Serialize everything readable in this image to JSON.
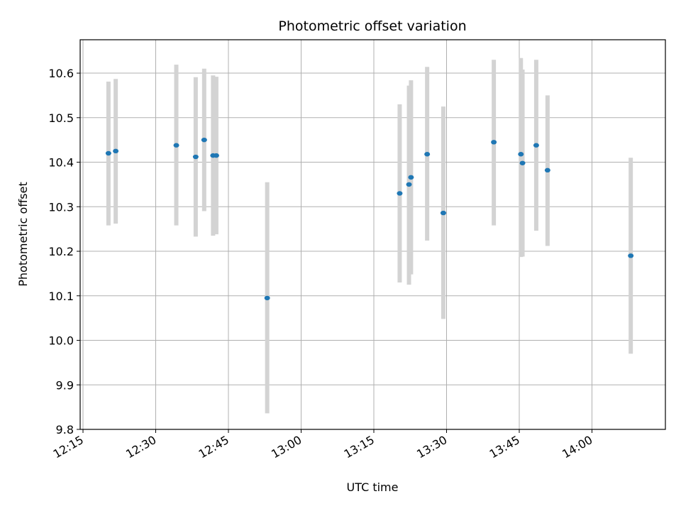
{
  "chart_data": {
    "type": "scatter",
    "title": "Photometric offset variation",
    "xlabel": "UTC time",
    "ylabel": "Photometric offset",
    "x_ticks": [
      "12:15",
      "12:30",
      "12:45",
      "13:00",
      "13:15",
      "13:30",
      "13:45",
      "14:00"
    ],
    "y_ticks": [
      "9.8",
      "9.9",
      "10.0",
      "10.1",
      "10.2",
      "10.3",
      "10.4",
      "10.5",
      "10.6"
    ],
    "xlim": [
      "12:15",
      "14:15"
    ],
    "ylim": [
      9.8,
      10.675
    ],
    "grid": true,
    "point_color": "#1f77b4",
    "errorbar_color": "#d3d3d3",
    "points": [
      {
        "x": "12:20:15",
        "y": 10.42,
        "ylow": 10.258,
        "yhigh": 10.581
      },
      {
        "x": "12:21:45",
        "y": 10.425,
        "ylow": 10.262,
        "yhigh": 10.587
      },
      {
        "x": "12:34:15",
        "y": 10.438,
        "ylow": 10.258,
        "yhigh": 10.619
      },
      {
        "x": "12:38:15",
        "y": 10.412,
        "ylow": 10.233,
        "yhigh": 10.591
      },
      {
        "x": "12:40:00",
        "y": 10.45,
        "ylow": 10.29,
        "yhigh": 10.61
      },
      {
        "x": "12:41:50",
        "y": 10.415,
        "ylow": 10.235,
        "yhigh": 10.595
      },
      {
        "x": "12:42:30",
        "y": 10.415,
        "ylow": 10.238,
        "yhigh": 10.592
      },
      {
        "x": "12:53:00",
        "y": 10.095,
        "ylow": 9.836,
        "yhigh": 10.355
      },
      {
        "x": "13:20:20",
        "y": 10.33,
        "ylow": 10.13,
        "yhigh": 10.53
      },
      {
        "x": "13:22:15",
        "y": 10.35,
        "ylow": 10.125,
        "yhigh": 10.572
      },
      {
        "x": "13:22:40",
        "y": 10.366,
        "ylow": 10.148,
        "yhigh": 10.584
      },
      {
        "x": "13:26:00",
        "y": 10.418,
        "ylow": 10.224,
        "yhigh": 10.614
      },
      {
        "x": "13:29:20",
        "y": 10.286,
        "ylow": 10.048,
        "yhigh": 10.525
      },
      {
        "x": "13:39:45",
        "y": 10.445,
        "ylow": 10.258,
        "yhigh": 10.63
      },
      {
        "x": "13:45:20",
        "y": 10.418,
        "ylow": 10.187,
        "yhigh": 10.634
      },
      {
        "x": "13:45:40",
        "y": 10.398,
        "ylow": 10.188,
        "yhigh": 10.608
      },
      {
        "x": "13:48:30",
        "y": 10.438,
        "ylow": 10.246,
        "yhigh": 10.63
      },
      {
        "x": "13:50:50",
        "y": 10.382,
        "ylow": 10.212,
        "yhigh": 10.55
      },
      {
        "x": "14:08:00",
        "y": 10.19,
        "ylow": 9.97,
        "yhigh": 10.41
      }
    ]
  }
}
